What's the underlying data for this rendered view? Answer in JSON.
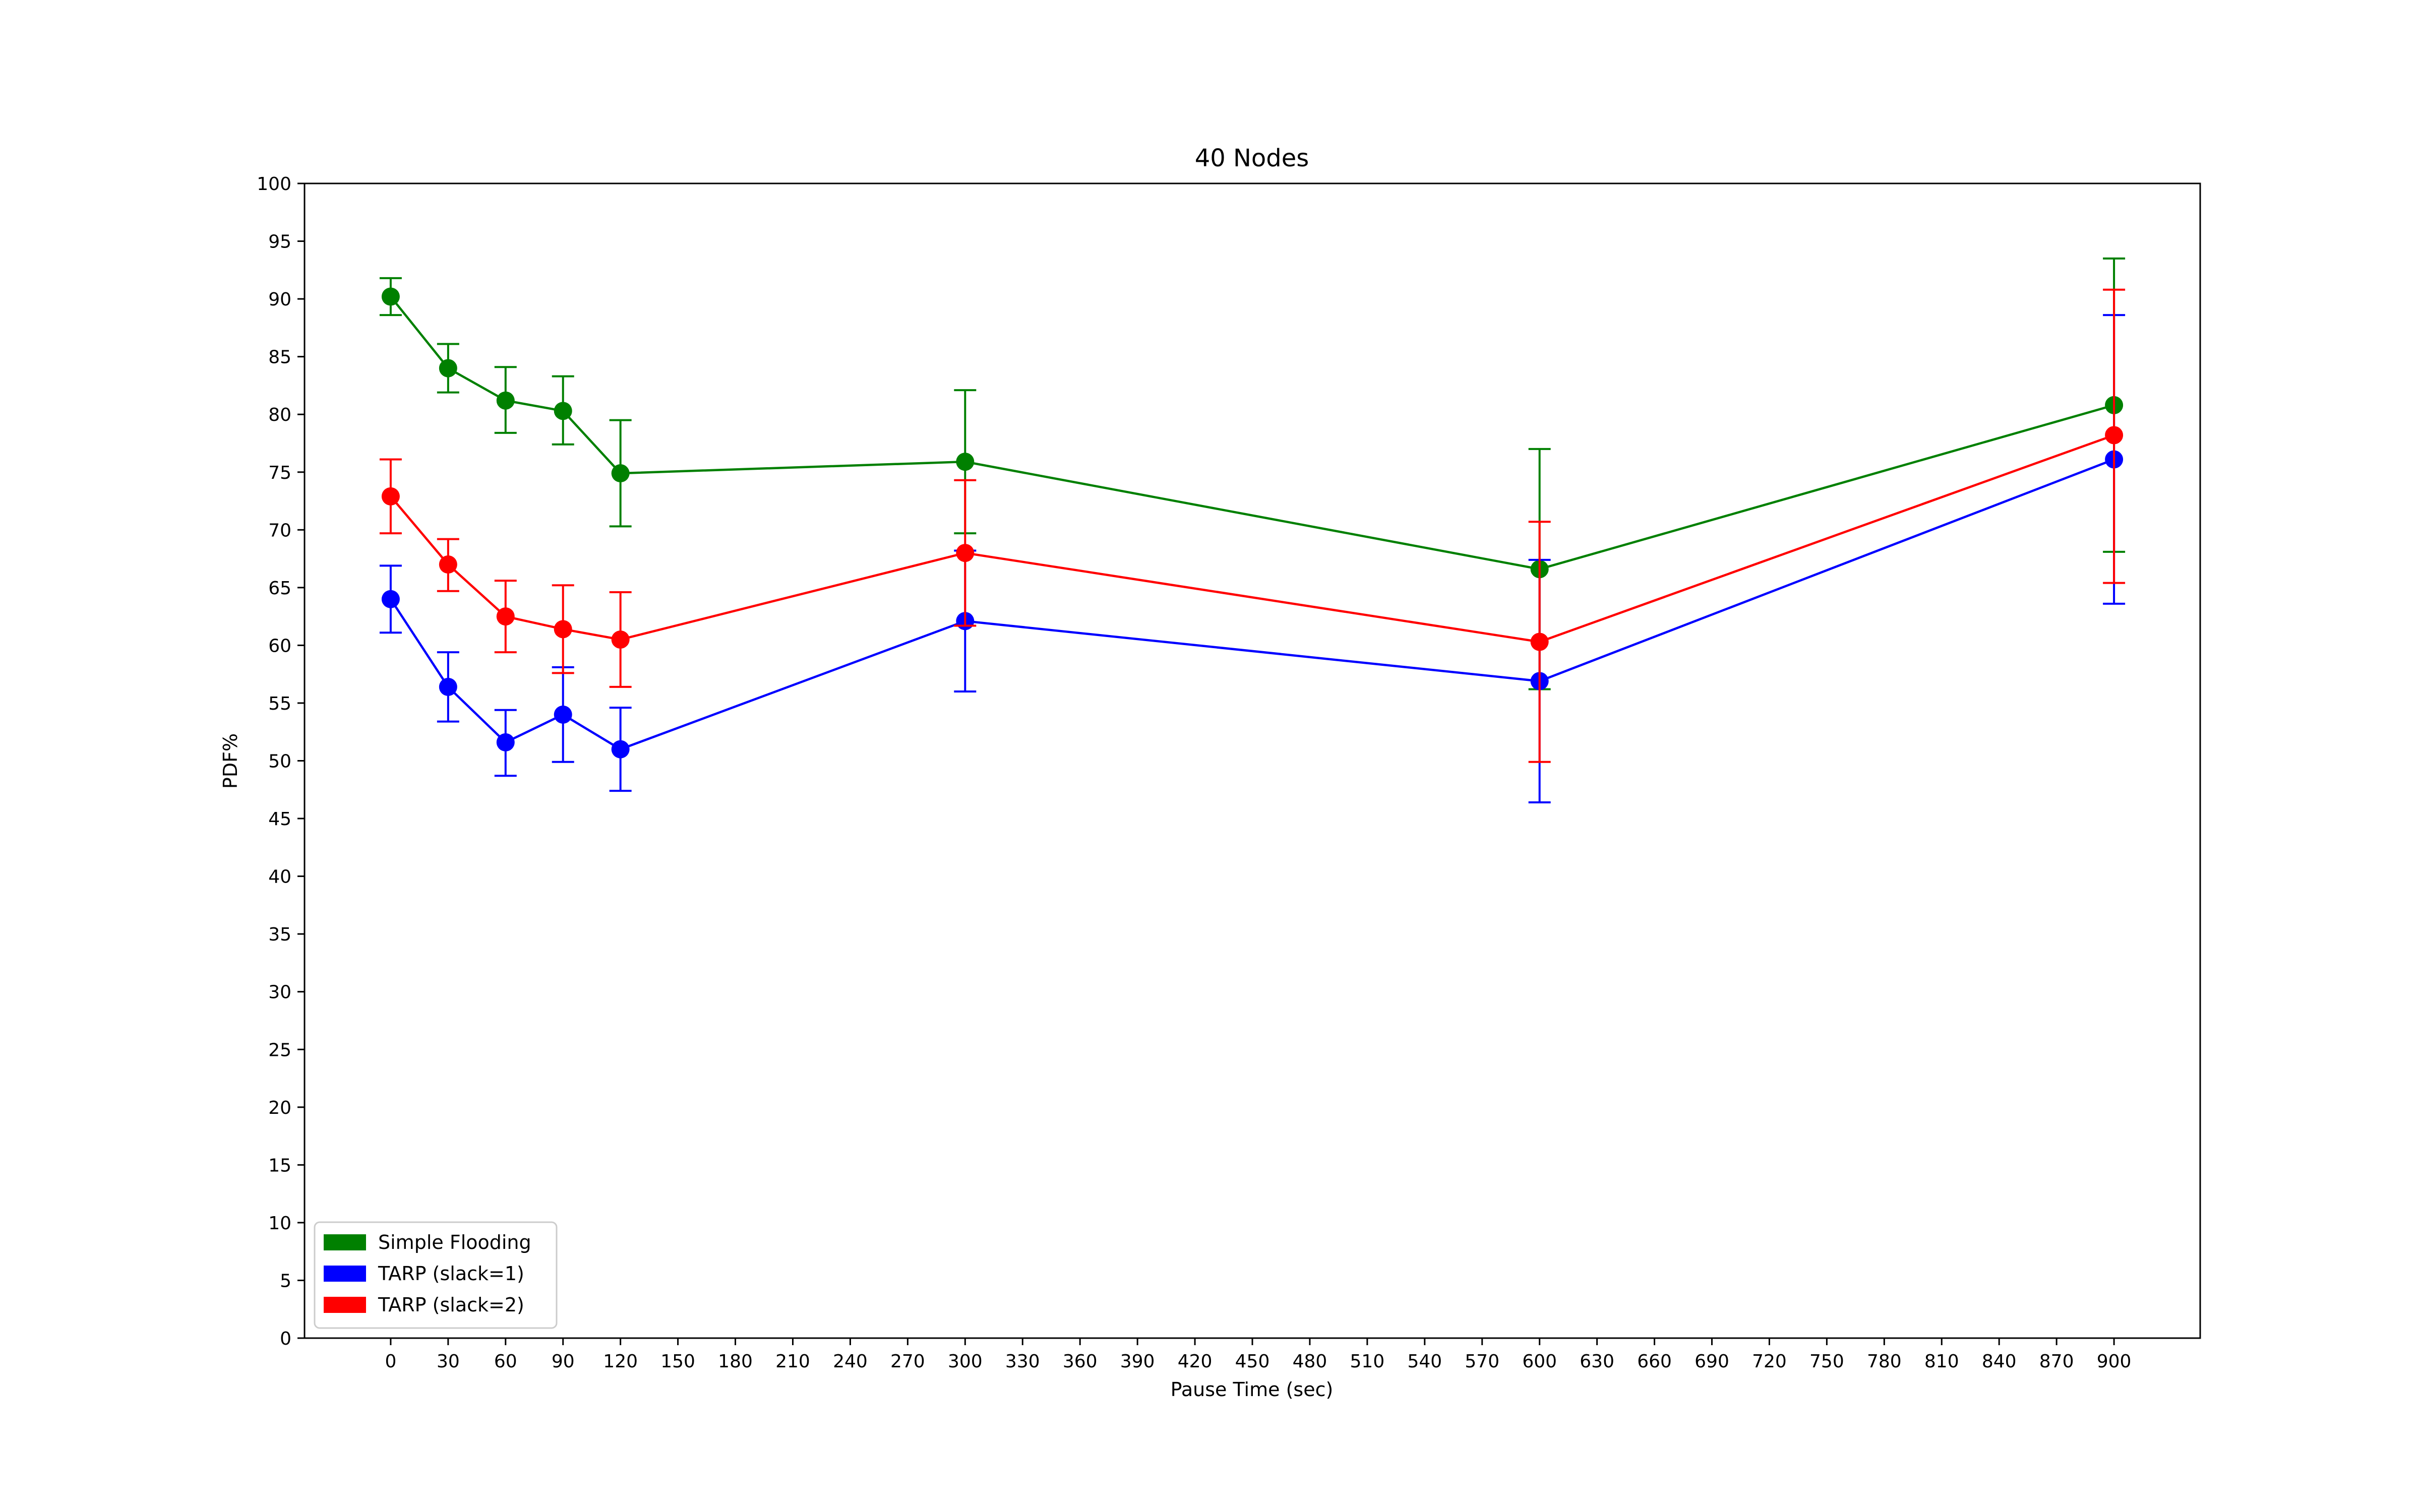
{
  "chart_data": {
    "type": "line",
    "title": "40 Nodes",
    "xlabel": "Pause Time (sec)",
    "ylabel": "PDF%",
    "xlim": [
      -45,
      945
    ],
    "ylim": [
      0,
      100
    ],
    "xticks": [
      0,
      30,
      60,
      90,
      120,
      150,
      180,
      210,
      240,
      270,
      300,
      330,
      360,
      390,
      420,
      450,
      480,
      510,
      540,
      570,
      600,
      630,
      660,
      690,
      720,
      750,
      780,
      810,
      840,
      870,
      900
    ],
    "yticks": [
      0,
      5,
      10,
      15,
      20,
      25,
      30,
      35,
      40,
      45,
      50,
      55,
      60,
      65,
      70,
      75,
      80,
      85,
      90,
      95,
      100
    ],
    "x": [
      0,
      30,
      60,
      90,
      120,
      300,
      600,
      900
    ],
    "grid": false,
    "legend_position": "lower-left",
    "series": [
      {
        "name": "Simple Flooding",
        "color": "#008000",
        "values": [
          90.2,
          84.0,
          81.2,
          80.3,
          74.9,
          75.9,
          66.6,
          80.8
        ],
        "err_low": [
          88.6,
          81.9,
          78.4,
          77.4,
          70.3,
          69.7,
          56.2,
          68.1
        ],
        "err_high": [
          91.8,
          86.1,
          84.1,
          83.3,
          79.5,
          82.1,
          77.0,
          93.5
        ]
      },
      {
        "name": "TARP (slack=1)",
        "color": "#0000ff",
        "values": [
          64.0,
          56.4,
          51.6,
          54.0,
          51.0,
          62.1,
          56.9,
          76.1
        ],
        "err_low": [
          61.1,
          53.4,
          48.7,
          49.9,
          47.4,
          56.0,
          46.4,
          63.6
        ],
        "err_high": [
          66.9,
          59.4,
          54.4,
          58.1,
          54.6,
          68.2,
          67.4,
          88.6
        ]
      },
      {
        "name": "TARP (slack=2)",
        "color": "#ff0000",
        "values": [
          72.9,
          67.0,
          62.5,
          61.4,
          60.5,
          68.0,
          60.3,
          78.2
        ],
        "err_low": [
          69.7,
          64.7,
          59.4,
          57.6,
          56.4,
          61.7,
          49.9,
          65.4
        ],
        "err_high": [
          76.1,
          69.2,
          65.6,
          65.2,
          64.6,
          74.3,
          70.7,
          90.8
        ]
      }
    ]
  }
}
